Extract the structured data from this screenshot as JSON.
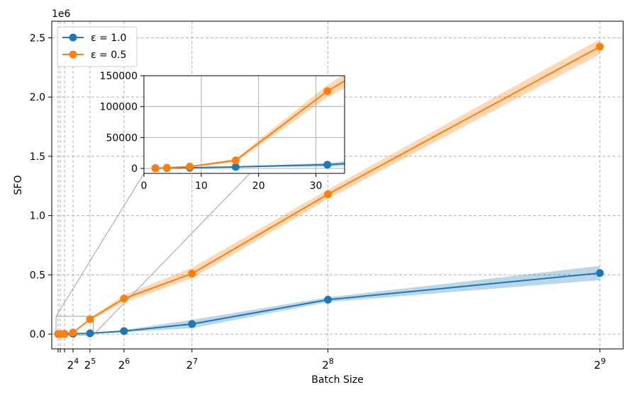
{
  "chart_data": [
    {
      "type": "line",
      "role": "main",
      "xlabel": "Batch Size",
      "ylabel": "SFO",
      "y_offset_label": "1e6",
      "x_scale": "linear",
      "xlim": [
        -4,
        534
      ],
      "ylim": [
        -125000,
        2640000
      ],
      "x": [
        2,
        4,
        8,
        16,
        32,
        64,
        128,
        256,
        512
      ],
      "x_tick_values": [
        16,
        32,
        64,
        128,
        256,
        512
      ],
      "x_tick_labels": [
        {
          "base": "2",
          "exp": "4"
        },
        {
          "base": "2",
          "exp": "5"
        },
        {
          "base": "2",
          "exp": "6"
        },
        {
          "base": "2",
          "exp": "7"
        },
        {
          "base": "2",
          "exp": "8"
        },
        {
          "base": "2",
          "exp": "9"
        }
      ],
      "y_tick_values": [
        0,
        500000,
        1000000,
        1500000,
        2000000,
        2500000
      ],
      "y_tick_labels": [
        "0.0",
        "0.5",
        "1.0",
        "1.5",
        "2.0",
        "2.5"
      ],
      "grid": true,
      "legend_position": "top-left",
      "series": [
        {
          "name": "ε = 1.0",
          "color": "#1f77b4",
          "values": [
            300,
            600,
            1200,
            2500,
            6000,
            25000,
            85000,
            290000,
            515000
          ],
          "lower": [
            200,
            500,
            900,
            1800,
            3000,
            15000,
            50000,
            270000,
            455000
          ],
          "upper": [
            400,
            700,
            1500,
            3200,
            9000,
            35000,
            120000,
            310000,
            575000
          ]
        },
        {
          "name": "ε = 0.5",
          "color": "#ff7f0e",
          "values": [
            600,
            1200,
            3000,
            13000,
            125000,
            300000,
            510000,
            1180000,
            2425000
          ],
          "lower": [
            400,
            900,
            2300,
            10000,
            115000,
            270000,
            470000,
            1140000,
            2360000
          ],
          "upper": [
            800,
            1500,
            3700,
            16000,
            135000,
            330000,
            560000,
            1220000,
            2490000
          ]
        }
      ]
    },
    {
      "type": "line",
      "role": "inset",
      "xlim": [
        0,
        35
      ],
      "ylim": [
        -8000,
        150000
      ],
      "x_tick_values": [
        0,
        10,
        20,
        30
      ],
      "x_tick_labels": [
        "0",
        "10",
        "20",
        "30"
      ],
      "y_tick_values": [
        0,
        50000,
        100000,
        150000
      ],
      "y_tick_labels": [
        "0",
        "50000",
        "100000",
        "150000"
      ],
      "grid": true
    }
  ]
}
